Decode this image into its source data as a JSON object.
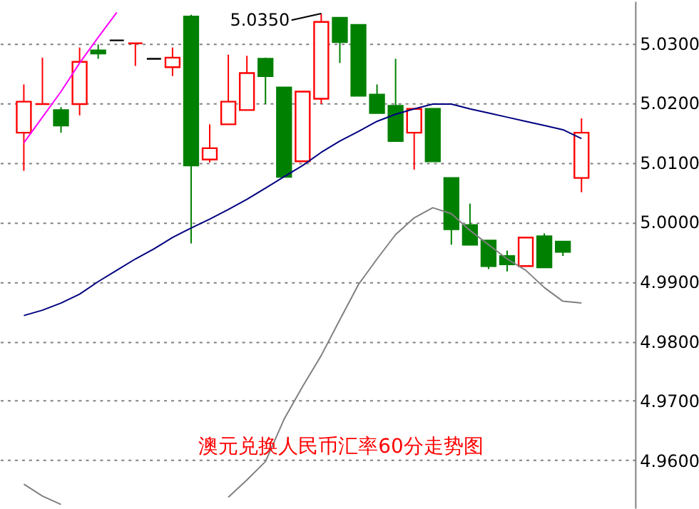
{
  "chart_data": {
    "type": "candlestick",
    "title": "澳元兑换人民币汇率60分走势图",
    "categories": [
      null,
      null,
      null,
      null,
      null,
      null,
      null,
      null,
      null,
      null,
      null,
      null,
      null,
      null,
      null,
      null,
      null,
      null,
      null,
      null,
      null,
      null,
      null,
      null,
      null,
      null,
      null,
      null,
      null,
      null,
      null
    ],
    "ohlc": [
      [
        5.015,
        5.0231,
        5.0086,
        5.0202
      ],
      [
        5.0198,
        5.0276,
        5.0198,
        5.0198
      ],
      [
        5.0188,
        5.0193,
        5.015,
        5.0162
      ],
      [
        5.0198,
        5.0293,
        5.0179,
        5.0269
      ],
      [
        5.0288,
        5.0298,
        5.0274,
        5.0283
      ],
      [
        5.0305,
        5.0305,
        5.0305,
        5.0305
      ],
      [
        5.03,
        5.03,
        5.0262,
        5.03
      ],
      [
        5.0274,
        5.0274,
        5.0274,
        5.0274
      ],
      [
        5.026,
        5.0293,
        5.0245,
        5.0276
      ],
      [
        5.0345,
        5.0348,
        4.9964,
        5.0095
      ],
      [
        5.0105,
        5.0164,
        5.01,
        5.0124
      ],
      [
        5.0164,
        5.0281,
        5.0164,
        5.0202
      ],
      [
        5.0188,
        5.0279,
        5.0188,
        5.025
      ],
      [
        5.0274,
        5.0276,
        5.0198,
        5.0245
      ],
      [
        5.0226,
        5.0226,
        5.0076,
        5.0076
      ],
      [
        5.0102,
        5.0219,
        5.0102,
        5.0219
      ],
      [
        5.0207,
        5.035,
        5.0198,
        5.0336
      ],
      [
        5.0343,
        5.0343,
        5.0267,
        5.0302
      ],
      [
        5.0331,
        5.0331,
        5.0212,
        5.0212
      ],
      [
        5.0214,
        5.0231,
        5.0183,
        5.0183
      ],
      [
        5.0195,
        5.0274,
        5.0136,
        5.0136
      ],
      [
        5.015,
        5.019,
        5.0088,
        5.019
      ],
      [
        5.019,
        5.019,
        5.0102,
        5.0102
      ],
      [
        5.0074,
        5.0074,
        4.9962,
        4.9988
      ],
      [
        4.9995,
        5.0031,
        4.9962,
        4.9962
      ],
      [
        4.9969,
        4.9969,
        4.9921,
        4.9926
      ],
      [
        4.9943,
        4.9952,
        4.9917,
        4.9929
      ],
      [
        4.9926,
        4.9974,
        4.9926,
        4.9974
      ],
      [
        4.9976,
        4.9981,
        4.9924,
        4.9924
      ],
      [
        4.9967,
        4.9967,
        4.9943,
        4.995
      ],
      [
        5.0074,
        5.0174,
        5.005,
        5.015
      ]
    ],
    "colors": [
      "#ff0000",
      "#ff0000",
      "#008000",
      "#ff0000",
      "#008000",
      "#000000",
      "#ff0000",
      "#000000",
      "#ff0000",
      "#008000",
      "#ff0000",
      "#ff0000",
      "#ff0000",
      "#008000",
      "#008000",
      "#ff0000",
      "#ff0000",
      "#008000",
      "#008000",
      "#008000",
      "#008000",
      "#ff0000",
      "#008000",
      "#008000",
      "#008000",
      "#008000",
      "#008000",
      "#ff0000",
      "#008000",
      "#008000",
      "#ff0000"
    ],
    "series": [
      {
        "type": "line",
        "color": "#ff00ff",
        "values": [
          5.0133,
          5.0176,
          5.0219,
          5.0267,
          5.031,
          5.0352,
          null,
          null,
          null,
          null,
          null,
          null,
          null,
          null,
          null,
          null,
          null,
          null,
          null,
          null,
          null,
          null,
          null,
          null,
          null,
          null,
          null,
          null,
          null,
          null,
          null
        ]
      },
      {
        "type": "line",
        "color": "#000080",
        "values": [
          4.9843,
          4.9852,
          4.9864,
          4.9879,
          4.99,
          4.9919,
          4.9938,
          4.9955,
          4.9974,
          4.999,
          5.0005,
          5.0021,
          5.0038,
          5.0057,
          5.0076,
          5.0095,
          5.0117,
          5.0136,
          5.0152,
          5.0169,
          5.0181,
          5.019,
          5.0198,
          5.0198,
          5.019,
          5.0183,
          5.0176,
          5.0169,
          5.0162,
          5.0155,
          5.014
        ]
      },
      {
        "type": "line",
        "color": "#808080",
        "values": [
          4.956,
          4.954,
          4.9526,
          null,
          null,
          null,
          null,
          null,
          null,
          null,
          null,
          4.9538,
          4.9567,
          4.9598,
          4.9669,
          4.9724,
          4.9776,
          4.9836,
          4.9895,
          4.9938,
          4.9979,
          5.0007,
          5.0024,
          5.0014,
          4.9986,
          4.9962,
          4.9938,
          4.9919,
          4.989,
          4.9867,
          4.9864
        ]
      }
    ],
    "annotations": [
      "5.0350"
    ],
    "ylim": [
      4.952,
      5.0371
    ],
    "yticks": [
      {
        "value": 4.96,
        "label": "4.9600"
      },
      {
        "value": 4.97,
        "label": "4.9700"
      },
      {
        "value": 4.98,
        "label": "4.9800"
      },
      {
        "value": 4.99,
        "label": "4.9900"
      },
      {
        "value": 5.0,
        "label": "5.0000"
      },
      {
        "value": 5.01,
        "label": "5.0100"
      },
      {
        "value": 5.02,
        "label": "5.0200"
      },
      {
        "value": 5.03,
        "label": "5.0300"
      }
    ],
    "tick_labels": "y",
    "grid": "y"
  }
}
